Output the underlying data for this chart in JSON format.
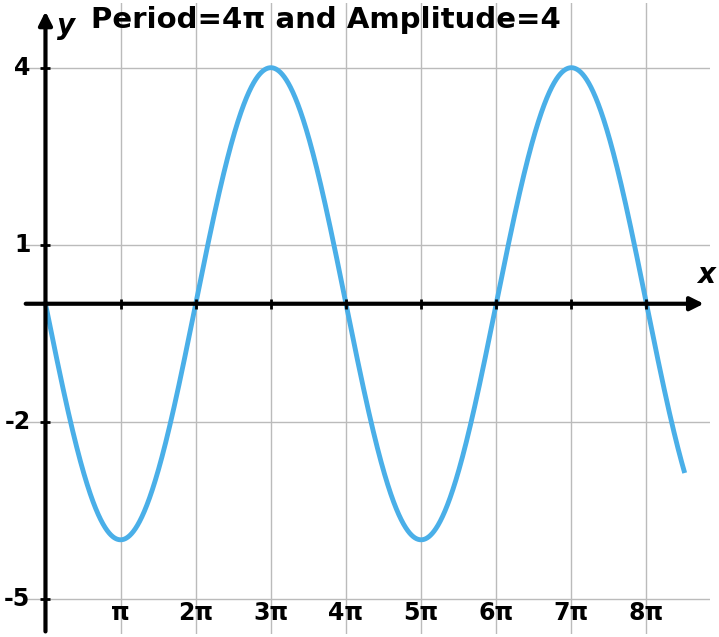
{
  "amplitude": 4,
  "b": 0.5,
  "sign": -1,
  "x_start": 0,
  "x_end_pi": 8.5,
  "x_ticks_pi": [
    1,
    2,
    3,
    4,
    5,
    6,
    7,
    8
  ],
  "pi_labels": [
    "π",
    "2π",
    "3π",
    "4π",
    "5π",
    "6π",
    "7π",
    "8π"
  ],
  "y_ticks": [
    -5,
    -2,
    1,
    4
  ],
  "ylim": [
    -5.6,
    5.1
  ],
  "xlim": [
    -0.3,
    8.85
  ],
  "title": "Period=4π and Amplitude=4",
  "title_fontsize": 21,
  "title_fontweight": "bold",
  "curve_color": "#4AAFE8",
  "curve_linewidth": 3.5,
  "axis_color": "#000000",
  "grid_color": "#bbbbbb",
  "background_color": "#ffffff",
  "outer_background": "#ffffff",
  "xlabel": "x",
  "ylabel": "y",
  "tick_fontsize": 17,
  "label_fontsize": 20,
  "axis_lw": 3.0
}
